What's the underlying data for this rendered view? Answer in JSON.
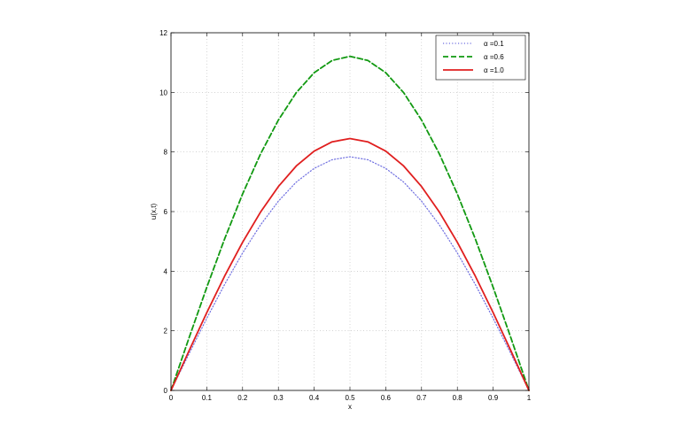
{
  "chart_data": {
    "type": "line",
    "title": "",
    "xlabel": "x",
    "ylabel": "u(x,t)",
    "xlim": [
      0,
      1
    ],
    "ylim": [
      0,
      12
    ],
    "xticks": [
      0,
      0.1,
      0.2,
      0.3,
      0.4,
      0.5,
      0.6,
      0.7,
      0.8,
      0.9,
      1
    ],
    "xtick_labels": [
      "0",
      "0.1",
      "0.2",
      "0.3",
      "0.4",
      "0.5",
      "0.6",
      "0.7",
      "0.8",
      "0.9",
      "1"
    ],
    "yticks": [
      0,
      2,
      4,
      6,
      8,
      10,
      12
    ],
    "ytick_labels": [
      "0",
      "2",
      "4",
      "6",
      "8",
      "10",
      "12"
    ],
    "grid": true,
    "legend_position": "top-right",
    "x": [
      0,
      0.05,
      0.1,
      0.15,
      0.2,
      0.25,
      0.3,
      0.35,
      0.4,
      0.45,
      0.5,
      0.55,
      0.6,
      0.65,
      0.7,
      0.75,
      0.8,
      0.85,
      0.9,
      0.95,
      1
    ],
    "series": [
      {
        "name": "α =0.1",
        "color": "#6f6fe0",
        "dash": "dotted",
        "values": [
          0,
          1.22,
          2.42,
          3.56,
          4.61,
          5.55,
          6.35,
          6.99,
          7.45,
          7.74,
          7.84,
          7.74,
          7.45,
          6.99,
          6.35,
          5.55,
          4.61,
          3.56,
          2.42,
          1.22,
          0
        ]
      },
      {
        "name": "α =0.6",
        "color": "#119911",
        "dash": "dashed",
        "values": [
          0,
          1.75,
          3.46,
          5.09,
          6.59,
          7.93,
          9.07,
          9.99,
          10.66,
          11.07,
          11.21,
          11.07,
          10.66,
          9.99,
          9.07,
          7.93,
          6.59,
          5.09,
          3.46,
          1.75,
          0
        ]
      },
      {
        "name": "α =1.0",
        "color": "#e01f1f",
        "dash": "solid",
        "values": [
          0,
          1.32,
          2.61,
          3.84,
          4.97,
          5.98,
          6.84,
          7.53,
          8.03,
          8.34,
          8.45,
          8.34,
          8.03,
          7.53,
          6.84,
          5.98,
          4.97,
          3.84,
          2.61,
          1.32,
          0
        ]
      }
    ]
  }
}
